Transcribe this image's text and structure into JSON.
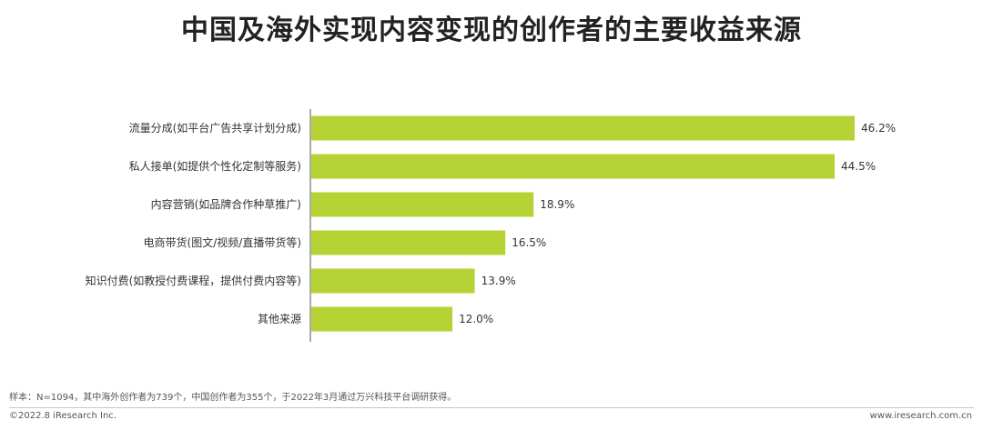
{
  "title": "中国及海外实现内容变现的创作者的主要收益来源",
  "footnote": "样本：N=1094，其中海外创作者为739个，中国创作者为355个，于2022年3月通过万兴科技平台调研获得。",
  "copyright": "©2022.8 iResearch Inc.",
  "website": "www.iresearch.com.cn",
  "colors": {
    "bar": "#b5d334",
    "axis": "#555555",
    "text": "#333333"
  },
  "chart_data": {
    "type": "bar",
    "orientation": "horizontal",
    "categories": [
      "流量分成(如平台广告共享计划分成)",
      "私人接单(如提供个性化定制等服务)",
      "内容营销(如品牌合作种草推广)",
      "电商带货(图文/视频/直播带货等)",
      "知识付费(如教授付费课程，提供付费内容等)",
      "其他来源"
    ],
    "values": [
      46.2,
      44.5,
      18.9,
      16.5,
      13.9,
      12.0
    ],
    "value_labels": [
      "46.2%",
      "44.5%",
      "18.9%",
      "16.5%",
      "13.9%",
      "12.0%"
    ],
    "unit": "%",
    "xlim": [
      0,
      46.2
    ],
    "grid": false,
    "legend": "none"
  }
}
